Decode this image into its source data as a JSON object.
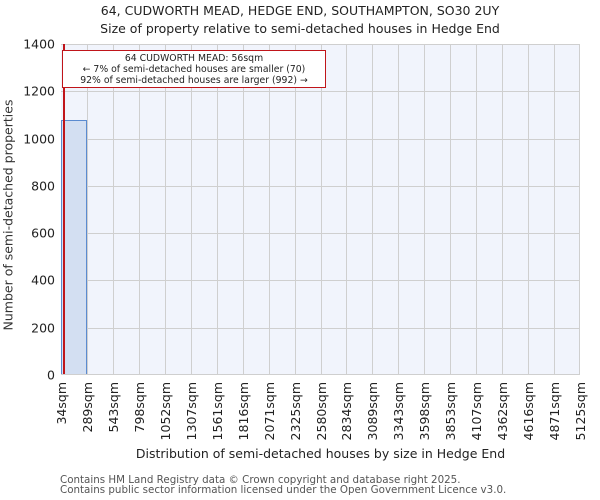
{
  "title": {
    "line1": "64, CUDWORTH MEAD, HEDGE END, SOUTHAMPTON, SO30 2UY",
    "line2": "Size of property relative to semi-detached houses in Hedge End"
  },
  "annotation": {
    "line1": "64 CUDWORTH MEAD: 56sqm",
    "line2": "← 7% of semi-detached houses are smaller (70)",
    "line3": "92% of semi-detached houses are larger (992) →"
  },
  "axes": {
    "ylabel": "Number of semi-detached properties",
    "xlabel": "Distribution of semi-detached houses by size in Hedge End",
    "yticks": [
      "0",
      "200",
      "400",
      "600",
      "800",
      "1000",
      "1200",
      "1400"
    ],
    "xticks": [
      "34sqm",
      "289sqm",
      "543sqm",
      "798sqm",
      "1052sqm",
      "1307sqm",
      "1561sqm",
      "1816sqm",
      "2071sqm",
      "2325sqm",
      "2580sqm",
      "2834sqm",
      "3089sqm",
      "3343sqm",
      "3598sqm",
      "3853sqm",
      "4107sqm",
      "4362sqm",
      "4616sqm",
      "4871sqm",
      "5125sqm"
    ]
  },
  "footer": {
    "line1": "Contains HM Land Registry data © Crown copyright and database right 2025.",
    "line2": "Contains public sector information licensed under the Open Government Licence v3.0."
  },
  "colors": {
    "bar_fill": "#d3dff2",
    "bar_edge": "#5b8bd0",
    "marker_line": "#c0151a",
    "plot_bg": "#f1f4fc"
  },
  "chart_data": {
    "type": "bar",
    "title": "64, CUDWORTH MEAD, HEDGE END, SOUTHAMPTON, SO30 2UY",
    "subtitle": "Size of property relative to semi-detached houses in Hedge End",
    "xlabel": "Distribution of semi-detached houses by size in Hedge End",
    "ylabel": "Number of semi-detached properties",
    "categories": [
      "34sqm",
      "289sqm",
      "543sqm",
      "798sqm",
      "1052sqm",
      "1307sqm",
      "1561sqm",
      "1816sqm",
      "2071sqm",
      "2325sqm",
      "2580sqm",
      "2834sqm",
      "3089sqm",
      "3343sqm",
      "3598sqm",
      "3853sqm",
      "4107sqm",
      "4362sqm",
      "4616sqm",
      "4871sqm"
    ],
    "bin_edges": [
      34,
      289,
      543,
      798,
      1052,
      1307,
      1561,
      1816,
      2071,
      2325,
      2580,
      2834,
      3089,
      3343,
      3598,
      3853,
      4107,
      4362,
      4616,
      4871,
      5125
    ],
    "values": [
      1074,
      0,
      0,
      0,
      0,
      0,
      0,
      0,
      0,
      0,
      0,
      0,
      0,
      0,
      0,
      0,
      0,
      0,
      0,
      0
    ],
    "ylim": [
      0,
      1400
    ],
    "grid": true,
    "marker": {
      "x": 56,
      "label": "64 CUDWORTH MEAD: 56sqm"
    },
    "annotations": [
      "64 CUDWORTH MEAD: 56sqm",
      "← 7% of semi-detached houses are smaller (70)",
      "92% of semi-detached houses are larger (992) →"
    ]
  }
}
